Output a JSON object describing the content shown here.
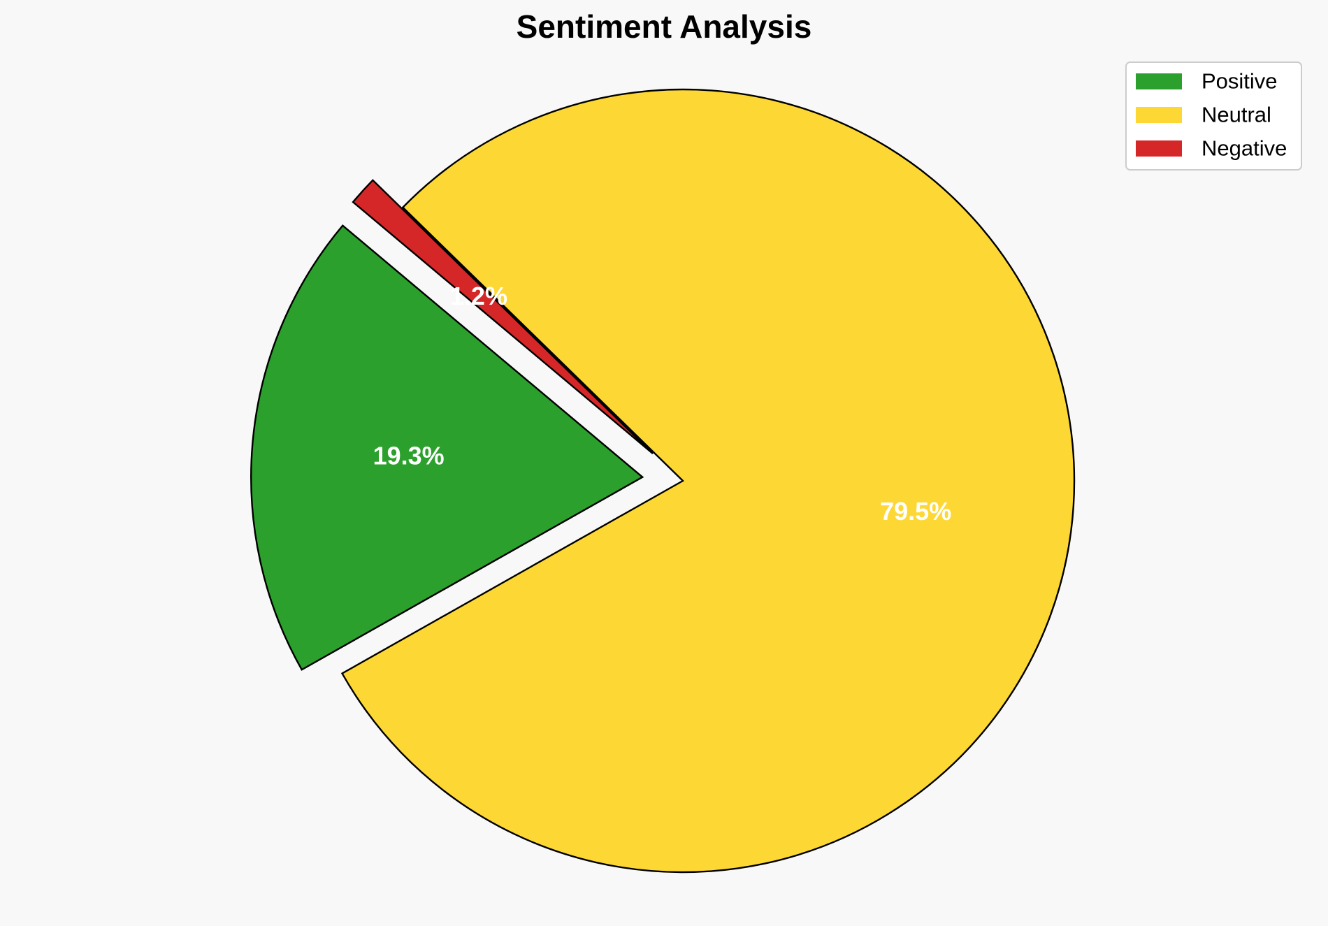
{
  "chart_data": {
    "type": "pie",
    "title": "Sentiment Analysis",
    "categories": [
      "Positive",
      "Neutral",
      "Negative"
    ],
    "values": [
      19.3,
      79.5,
      1.2
    ],
    "value_labels": [
      "19.3%",
      "79.5%",
      "1.2%"
    ],
    "colors": [
      "#2ca02c",
      "#fdd835",
      "#d62728"
    ],
    "label_color": "#ffffff",
    "edge_color": "#000000",
    "background": "#f8f8f8",
    "exploded": [
      true,
      false,
      true
    ],
    "start_angle_deg": 140,
    "direction": "counterclockwise",
    "legend": {
      "position": "top-right",
      "entries": [
        "Positive",
        "Neutral",
        "Negative"
      ]
    }
  }
}
